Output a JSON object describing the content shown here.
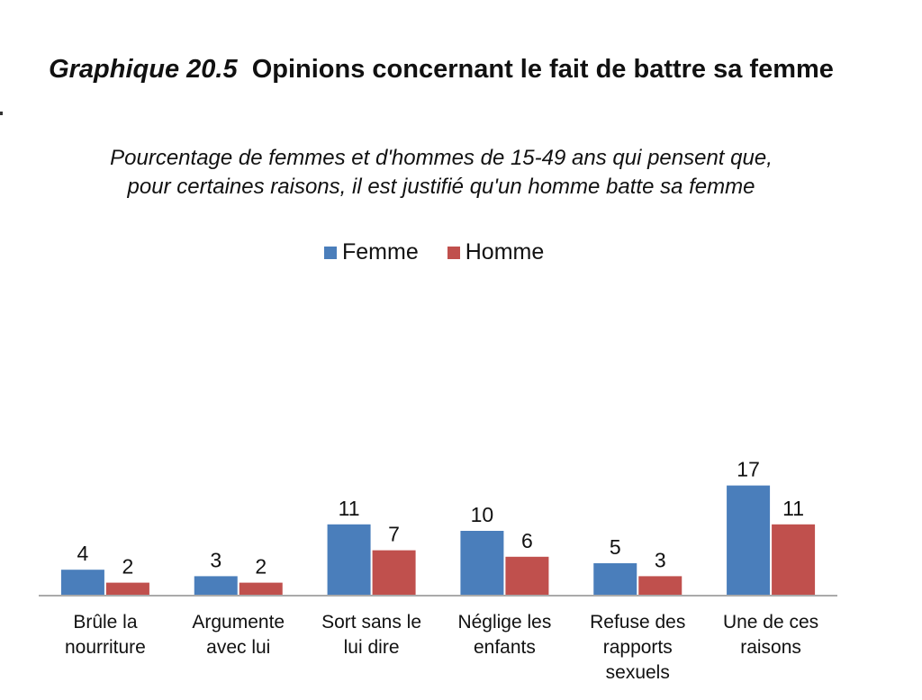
{
  "chart_data": {
    "type": "bar",
    "title_number": "Graphique 20.5",
    "title": "Opinions concernant le fait de battre sa femme",
    "subtitle": "Pourcentage de femmes et d'hommes de 15-49 ans qui pensent que, pour certaines raisons, il est justifié qu'un homme batte sa femme",
    "categories": [
      [
        "Brûle la",
        "nourriture"
      ],
      [
        "Argumente",
        "avec lui"
      ],
      [
        "Sort sans le",
        "lui dire"
      ],
      [
        "Néglige les",
        "enfants"
      ],
      [
        "Refuse des",
        "rapports",
        "sexuels"
      ],
      [
        "Une de ces",
        "raisons"
      ]
    ],
    "series": [
      {
        "name": "Femme",
        "color": "#4a7ebb",
        "values": [
          4,
          3,
          11,
          10,
          5,
          17
        ]
      },
      {
        "name": "Homme",
        "color": "#c0504d",
        "values": [
          2,
          2,
          7,
          6,
          3,
          11
        ]
      }
    ],
    "ylim": [
      0,
      17
    ],
    "grid": false,
    "legend_position": "top-center"
  }
}
